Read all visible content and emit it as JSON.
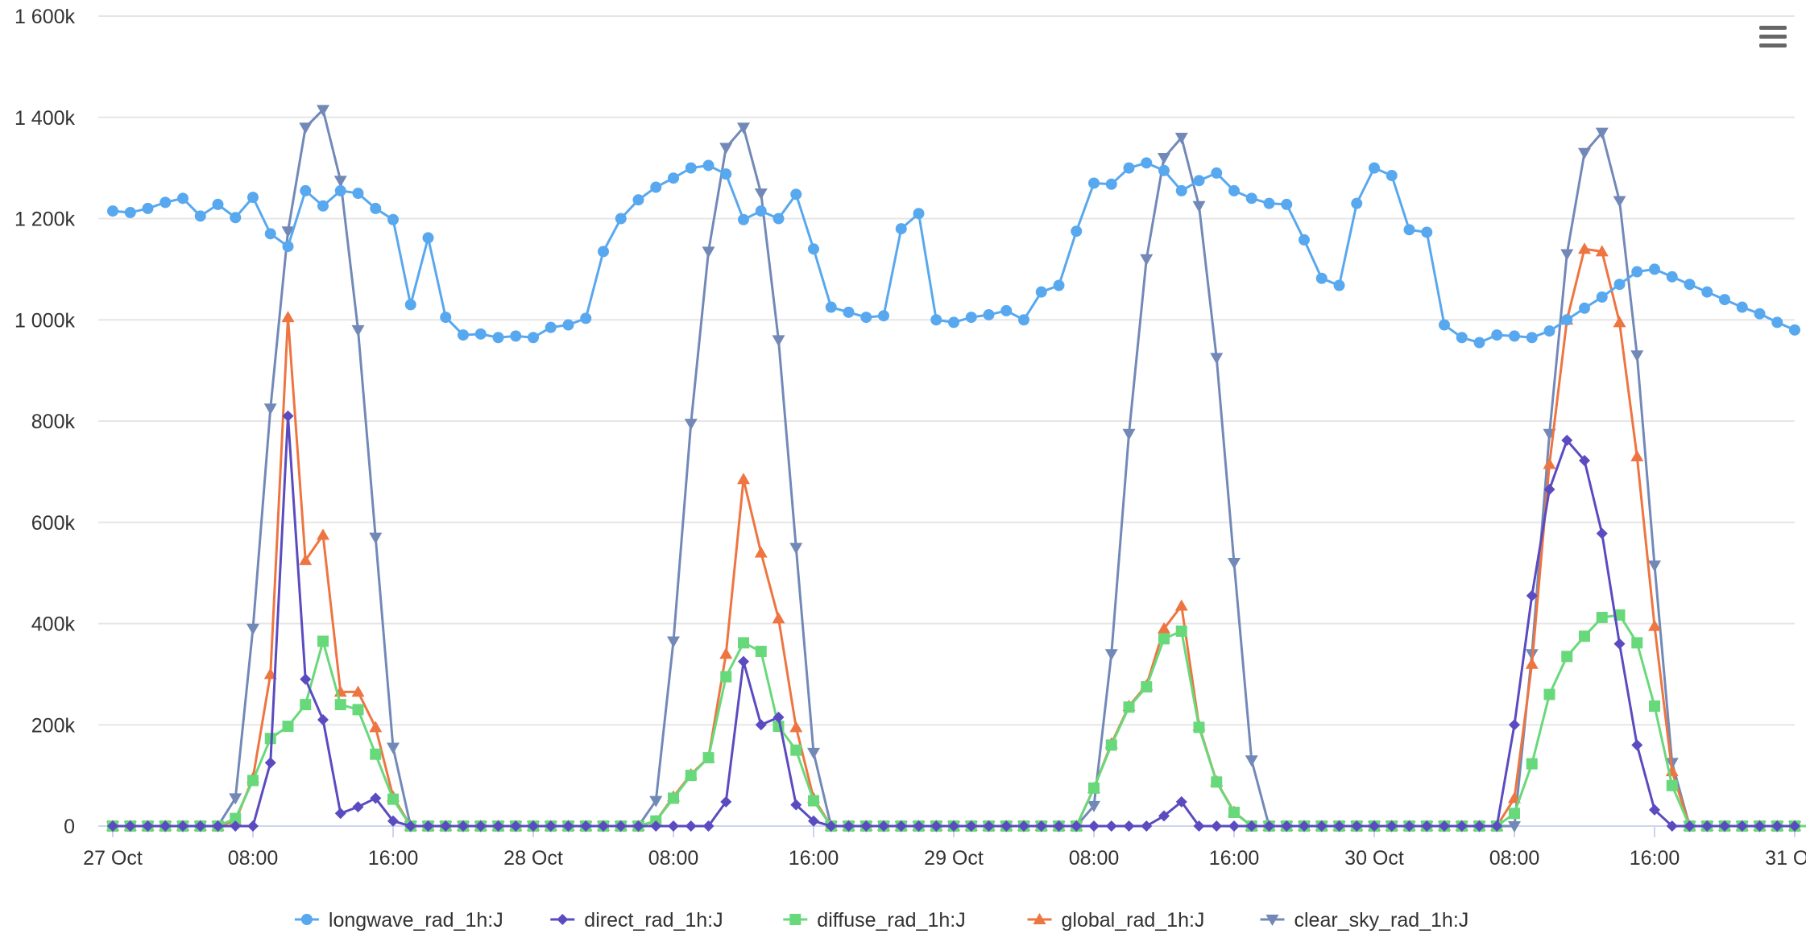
{
  "chart_data": {
    "type": "line",
    "title": "",
    "xlabel": "",
    "ylabel": "",
    "x_axis": {
      "start_hour": 0,
      "end_hour": 96,
      "labels": [
        {
          "hour": 0,
          "label": "27 Oct"
        },
        {
          "hour": 8,
          "label": "08:00"
        },
        {
          "hour": 16,
          "label": "16:00"
        },
        {
          "hour": 24,
          "label": "28 Oct"
        },
        {
          "hour": 32,
          "label": "08:00"
        },
        {
          "hour": 40,
          "label": "16:00"
        },
        {
          "hour": 48,
          "label": "29 Oct"
        },
        {
          "hour": 56,
          "label": "08:00"
        },
        {
          "hour": 64,
          "label": "16:00"
        },
        {
          "hour": 72,
          "label": "30 Oct"
        },
        {
          "hour": 80,
          "label": "08:00"
        },
        {
          "hour": 88,
          "label": "16:00"
        },
        {
          "hour": 96,
          "label": "31 Oct"
        }
      ]
    },
    "y_axis": {
      "min": 0,
      "max": 1600000,
      "ticks": [
        {
          "value": 0,
          "label": "0"
        },
        {
          "value": 200000,
          "label": "200k"
        },
        {
          "value": 400000,
          "label": "400k"
        },
        {
          "value": 600000,
          "label": "600k"
        },
        {
          "value": 800000,
          "label": "800k"
        },
        {
          "value": 1000000,
          "label": "1 000k"
        },
        {
          "value": 1200000,
          "label": "1 200k"
        },
        {
          "value": 1400000,
          "label": "1 400k"
        },
        {
          "value": 1600000,
          "label": "1 600k"
        }
      ]
    },
    "grid": true,
    "legend_position": "bottom-center",
    "series": [
      {
        "name": "longwave_rad_1h:J",
        "color": "#58a8ef",
        "marker": "circle",
        "values": [
          1215000,
          1212000,
          1220000,
          1232000,
          1240000,
          1205000,
          1228000,
          1202000,
          1242000,
          1170000,
          1145000,
          1255000,
          1225000,
          1255000,
          1250000,
          1220000,
          1198000,
          1030000,
          1162000,
          1005000,
          970000,
          972000,
          965000,
          968000,
          965000,
          985000,
          990000,
          1003000,
          1135000,
          1200000,
          1237000,
          1262000,
          1280000,
          1300000,
          1305000,
          1288000,
          1198000,
          1215000,
          1200000,
          1248000,
          1140000,
          1025000,
          1015000,
          1005000,
          1008000,
          1180000,
          1210000,
          1000000,
          995000,
          1005000,
          1010000,
          1018000,
          1000000,
          1055000,
          1068000,
          1175000,
          1270000,
          1268000,
          1300000,
          1310000,
          1295000,
          1255000,
          1275000,
          1290000,
          1255000,
          1240000,
          1230000,
          1228000,
          1158000,
          1082000,
          1068000,
          1230000,
          1300000,
          1285000,
          1178000,
          1173000,
          990000,
          965000,
          955000,
          970000,
          968000,
          965000,
          978000,
          1000000,
          1023000,
          1045000,
          1070000,
          1095000,
          1100000,
          1085000,
          1070000,
          1055000,
          1040000,
          1025000,
          1012000,
          995000,
          980000
        ]
      },
      {
        "name": "direct_rad_1h:J",
        "color": "#5a4bc0",
        "marker": "diamond",
        "values": [
          0,
          0,
          0,
          0,
          0,
          0,
          0,
          0,
          0,
          125000,
          810000,
          290000,
          210000,
          25000,
          38000,
          55000,
          10000,
          0,
          0,
          0,
          0,
          0,
          0,
          0,
          0,
          0,
          0,
          0,
          0,
          0,
          0,
          0,
          0,
          0,
          0,
          48000,
          325000,
          200000,
          215000,
          42000,
          10000,
          0,
          0,
          0,
          0,
          0,
          0,
          0,
          0,
          0,
          0,
          0,
          0,
          0,
          0,
          0,
          0,
          0,
          0,
          0,
          20000,
          48000,
          0,
          0,
          0,
          0,
          0,
          0,
          0,
          0,
          0,
          0,
          0,
          0,
          0,
          0,
          0,
          0,
          0,
          0,
          200000,
          455000,
          665000,
          762000,
          722000,
          578000,
          360000,
          160000,
          32000,
          0,
          0,
          0,
          0,
          0,
          0,
          0,
          0
        ]
      },
      {
        "name": "diffuse_rad_1h:J",
        "color": "#68d97b",
        "marker": "square",
        "values": [
          0,
          0,
          0,
          0,
          0,
          0,
          0,
          15000,
          90000,
          173000,
          197000,
          240000,
          365000,
          240000,
          230000,
          142000,
          53000,
          0,
          0,
          0,
          0,
          0,
          0,
          0,
          0,
          0,
          0,
          0,
          0,
          0,
          0,
          10000,
          55000,
          100000,
          135000,
          295000,
          362000,
          345000,
          197000,
          150000,
          50000,
          0,
          0,
          0,
          0,
          0,
          0,
          0,
          0,
          0,
          0,
          0,
          0,
          0,
          0,
          0,
          75000,
          160000,
          235000,
          275000,
          370000,
          385000,
          195000,
          87000,
          27000,
          0,
          0,
          0,
          0,
          0,
          0,
          0,
          0,
          0,
          0,
          0,
          0,
          0,
          0,
          0,
          25000,
          123000,
          260000,
          335000,
          375000,
          412000,
          417000,
          362000,
          237000,
          80000,
          0,
          0,
          0,
          0,
          0,
          0,
          0,
          0
        ]
      },
      {
        "name": "global_rad_1h:J",
        "color": "#ee7541",
        "marker": "triangle",
        "values": [
          0,
          0,
          0,
          0,
          0,
          0,
          0,
          10000,
          95000,
          300000,
          1005000,
          525000,
          575000,
          265000,
          265000,
          195000,
          58000,
          0,
          0,
          0,
          0,
          0,
          0,
          0,
          0,
          0,
          0,
          0,
          0,
          0,
          0,
          10000,
          58000,
          102000,
          135000,
          340000,
          685000,
          540000,
          410000,
          195000,
          55000,
          0,
          0,
          0,
          0,
          0,
          0,
          0,
          0,
          0,
          0,
          0,
          0,
          0,
          0,
          0,
          75000,
          163000,
          237000,
          278000,
          390000,
          435000,
          198000,
          88000,
          28000,
          0,
          0,
          0,
          0,
          0,
          0,
          0,
          0,
          0,
          0,
          0,
          0,
          0,
          0,
          0,
          55000,
          320000,
          715000,
          1000000,
          1140000,
          1135000,
          995000,
          730000,
          395000,
          108000,
          0,
          0,
          0,
          0,
          0,
          0,
          0,
          0
        ]
      },
      {
        "name": "clear_sky_rad_1h:J",
        "color": "#7289b8",
        "marker": "triangle-down",
        "values": [
          0,
          0,
          0,
          0,
          0,
          0,
          0,
          55000,
          390000,
          825000,
          1175000,
          1380000,
          1415000,
          1275000,
          980000,
          570000,
          155000,
          0,
          0,
          0,
          0,
          0,
          0,
          0,
          0,
          0,
          0,
          0,
          0,
          0,
          0,
          50000,
          365000,
          795000,
          1135000,
          1340000,
          1380000,
          1250000,
          960000,
          550000,
          145000,
          0,
          0,
          0,
          0,
          0,
          0,
          0,
          0,
          0,
          0,
          0,
          0,
          0,
          0,
          0,
          40000,
          340000,
          775000,
          1120000,
          1320000,
          1360000,
          1225000,
          925000,
          520000,
          130000,
          0,
          0,
          0,
          0,
          0,
          0,
          0,
          0,
          0,
          0,
          0,
          0,
          0,
          0,
          0,
          340000,
          775000,
          1130000,
          1330000,
          1370000,
          1235000,
          930000,
          515000,
          125000,
          0,
          0,
          0,
          0,
          0,
          0,
          0,
          0
        ]
      }
    ]
  }
}
